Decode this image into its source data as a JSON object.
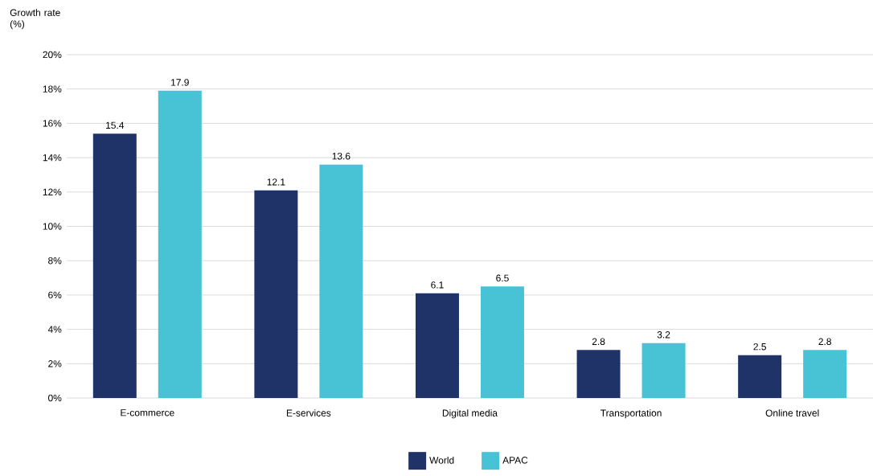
{
  "chart_data": {
    "type": "bar",
    "ylabel": "Growth rate (%)",
    "categories": [
      "E-commerce",
      "E-services",
      "Digital media",
      "Transportation",
      "Online travel"
    ],
    "series": [
      {
        "name": "World",
        "color": "#1f3368",
        "values": [
          15.4,
          12.1,
          6.1,
          2.8,
          2.5
        ]
      },
      {
        "name": "APAC",
        "color": "#48c3d5",
        "values": [
          17.9,
          13.6,
          6.5,
          3.2,
          2.8
        ]
      }
    ],
    "ylim": [
      0,
      20
    ],
    "yticks": [
      {
        "value": 0,
        "label": "0%"
      },
      {
        "value": 2,
        "label": "2%"
      },
      {
        "value": 4,
        "label": "4%"
      },
      {
        "value": 6,
        "label": "6%"
      },
      {
        "value": 8,
        "label": "8%"
      },
      {
        "value": 10,
        "label": "10%"
      },
      {
        "value": 12,
        "label": "12%"
      },
      {
        "value": 14,
        "label": "14%"
      },
      {
        "value": 16,
        "label": "16%"
      },
      {
        "value": 18,
        "label": "18%"
      },
      {
        "value": 20,
        "label": "20%"
      }
    ],
    "grid": "y",
    "legend": "bottom",
    "data_labels": true
  }
}
